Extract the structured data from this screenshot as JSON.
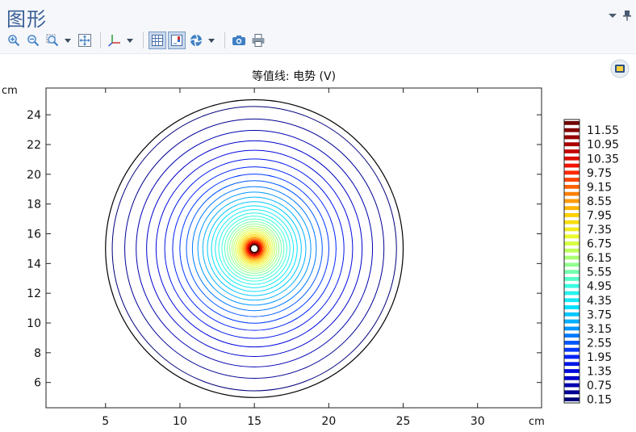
{
  "window": {
    "title": "图形"
  },
  "toolbar": {
    "icons": [
      "zoom-in-icon",
      "zoom-out-icon",
      "zoom-box-icon",
      "zoom-extents-icon",
      "axis-orientation-icon",
      "grid-icon",
      "legend-icon",
      "scene-light-icon",
      "camera-icon",
      "print-icon"
    ]
  },
  "chart_data": {
    "type": "contour",
    "title": "等值线: 电势 (V)",
    "x_unit_label": "cm",
    "y_unit_label": "cm",
    "xlim": [
      1,
      34.3
    ],
    "ylim": [
      4.3,
      25.8
    ],
    "x_ticks": [
      5,
      10,
      15,
      20,
      25,
      30
    ],
    "y_ticks": [
      6,
      8,
      10,
      12,
      14,
      16,
      18,
      20,
      22,
      24
    ],
    "x_tick_labels": [
      "5",
      "10",
      "15",
      "20",
      "25",
      "30"
    ],
    "y_tick_labels": [
      "6",
      "8",
      "10",
      "12",
      "14",
      "16",
      "18",
      "20",
      "22",
      "24"
    ],
    "domain": {
      "center": [
        15,
        15
      ],
      "outer_radius": 10,
      "inner_radius": 0.25
    },
    "levels": [
      0.15,
      0.45,
      0.75,
      1.05,
      1.35,
      1.65,
      1.95,
      2.25,
      2.55,
      2.85,
      3.15,
      3.45,
      3.75,
      4.05,
      4.35,
      4.65,
      4.95,
      5.25,
      5.55,
      5.85,
      6.15,
      6.45,
      6.75,
      7.05,
      7.35,
      7.65,
      7.95,
      8.25,
      8.55,
      8.85,
      9.15,
      9.45,
      9.75,
      10.05,
      10.35,
      10.65,
      10.95,
      11.25,
      11.55,
      11.85
    ],
    "colorbar": {
      "labels": [
        "11.55",
        "10.95",
        "10.35",
        "9.75",
        "9.15",
        "8.55",
        "7.95",
        "7.35",
        "6.75",
        "6.15",
        "5.55",
        "4.95",
        "4.35",
        "3.75",
        "3.15",
        "2.55",
        "1.95",
        "1.35",
        "0.75",
        "0.15"
      ],
      "colormap": "rainbow",
      "colors": [
        "#00007a",
        "#0000d0",
        "#0028ff",
        "#0090ff",
        "#00e0ff",
        "#40ffe0",
        "#a0ff80",
        "#e8ff30",
        "#ffd000",
        "#ff7800",
        "#ff1800",
        "#b00000",
        "#700000"
      ]
    }
  }
}
